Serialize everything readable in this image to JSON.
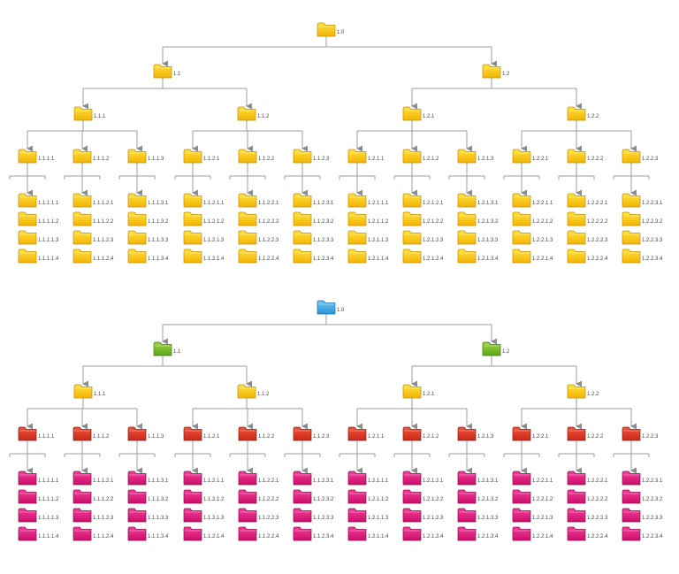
{
  "colors": {
    "line": "#9c9c9c",
    "arrow": "#8c8c8c",
    "text": "#444444",
    "yellow": [
      "#ffe23a",
      "#f3b406",
      "#c68e00"
    ],
    "blue": [
      "#6cc7f4",
      "#2a93d5",
      "#1c6ea4"
    ],
    "green": [
      "#9bd43d",
      "#5ba719",
      "#3f7a0d"
    ],
    "red": [
      "#f0533a",
      "#c8291b",
      "#8f1b10"
    ],
    "magenta": [
      "#f23e98",
      "#cc0f6c",
      "#940a4e"
    ]
  },
  "trees": [
    {
      "name": "tree-top",
      "level_colors": [
        "yellow",
        "yellow",
        "yellow",
        "yellow",
        "yellow"
      ],
      "root": {
        "label": "1.0",
        "children": [
          {
            "label": "1.1",
            "children": [
              {
                "label": "1.1.1",
                "children": [
                  {
                    "label": "1.1.1.1",
                    "children": [
                      {
                        "label": "1.1.1.1.1"
                      },
                      {
                        "label": "1.1.1.1.2"
                      },
                      {
                        "label": "1.1.1.1.3"
                      },
                      {
                        "label": "1.1.1.1.4"
                      }
                    ]
                  },
                  {
                    "label": "1.1.1.2",
                    "children": [
                      {
                        "label": "1.1.1.2.1"
                      },
                      {
                        "label": "1.1.1.2.2"
                      },
                      {
                        "label": "1.1.1.2.3"
                      },
                      {
                        "label": "1.1.1.2.4"
                      }
                    ]
                  },
                  {
                    "label": "1.1.1.3",
                    "children": [
                      {
                        "label": "1.1.1.3.1"
                      },
                      {
                        "label": "1.1.1.3.2"
                      },
                      {
                        "label": "1.1.1.3.3"
                      },
                      {
                        "label": "1.1.1.3.4"
                      }
                    ]
                  }
                ]
              },
              {
                "label": "1.1.2",
                "children": [
                  {
                    "label": "1.1.2.1",
                    "children": [
                      {
                        "label": "1.1.2.1.1"
                      },
                      {
                        "label": "1.1.2.1.2"
                      },
                      {
                        "label": "1.1.2.1.3"
                      },
                      {
                        "label": "1.1.2.1.4"
                      }
                    ]
                  },
                  {
                    "label": "1.1.2.2",
                    "children": [
                      {
                        "label": "1.1.2.2.1"
                      },
                      {
                        "label": "1.1.2.2.2"
                      },
                      {
                        "label": "1.1.2.2.3"
                      },
                      {
                        "label": "1.1.2.2.4"
                      }
                    ]
                  },
                  {
                    "label": "1.1.2.3",
                    "children": [
                      {
                        "label": "1.1.2.3.1"
                      },
                      {
                        "label": "1.1.2.3.2"
                      },
                      {
                        "label": "1.1.2.3.3"
                      },
                      {
                        "label": "1.1.2.3.4"
                      }
                    ]
                  }
                ]
              }
            ]
          },
          {
            "label": "1.2",
            "children": [
              {
                "label": "1.2.1",
                "children": [
                  {
                    "label": "1.2.1.1",
                    "children": [
                      {
                        "label": "1.2.1.1.1"
                      },
                      {
                        "label": "1.2.1.1.2"
                      },
                      {
                        "label": "1.2.1.1.3"
                      },
                      {
                        "label": "1.2.1.1.4"
                      }
                    ]
                  },
                  {
                    "label": "1.2.1.2",
                    "children": [
                      {
                        "label": "1.2.1.2.1"
                      },
                      {
                        "label": "1.2.1.2.2"
                      },
                      {
                        "label": "1.2.1.2.3"
                      },
                      {
                        "label": "1.2.1.2.4"
                      }
                    ]
                  },
                  {
                    "label": "1.2.1.3",
                    "children": [
                      {
                        "label": "1.2.1.3.1"
                      },
                      {
                        "label": "1.2.1.3.2"
                      },
                      {
                        "label": "1.2.1.3.3"
                      },
                      {
                        "label": "1.2.1.3.4"
                      }
                    ]
                  }
                ]
              },
              {
                "label": "1.2.2",
                "children": [
                  {
                    "label": "1.2.2.1",
                    "children": [
                      {
                        "label": "1.2.2.1.1"
                      },
                      {
                        "label": "1.2.2.1.2"
                      },
                      {
                        "label": "1.2.2.1.3"
                      },
                      {
                        "label": "1.2.2.1.4"
                      }
                    ]
                  },
                  {
                    "label": "1.2.2.2",
                    "children": [
                      {
                        "label": "1.2.2.2.1"
                      },
                      {
                        "label": "1.2.2.2.2"
                      },
                      {
                        "label": "1.2.2.2.3"
                      },
                      {
                        "label": "1.2.2.2.4"
                      }
                    ]
                  },
                  {
                    "label": "1.2.2.3",
                    "children": [
                      {
                        "label": "1.2.2.3.1"
                      },
                      {
                        "label": "1.2.2.3.2"
                      },
                      {
                        "label": "1.2.2.3.3"
                      },
                      {
                        "label": "1.2.2.3.4"
                      }
                    ]
                  }
                ]
              }
            ]
          }
        ]
      }
    },
    {
      "name": "tree-bottom",
      "level_colors": [
        "blue",
        "green",
        "yellow",
        "red",
        "magenta"
      ],
      "root": {
        "label": "1.0",
        "children": [
          {
            "label": "1.1",
            "children": [
              {
                "label": "1.1.1",
                "children": [
                  {
                    "label": "1.1.1.1",
                    "children": [
                      {
                        "label": "1.1.1.1.1"
                      },
                      {
                        "label": "1.1.1.1.2"
                      },
                      {
                        "label": "1.1.1.1.3"
                      },
                      {
                        "label": "1.1.1.1.4"
                      }
                    ]
                  },
                  {
                    "label": "1.1.1.2",
                    "children": [
                      {
                        "label": "1.1.1.2.1"
                      },
                      {
                        "label": "1.1.1.2.2"
                      },
                      {
                        "label": "1.1.1.2.3"
                      },
                      {
                        "label": "1.1.1.2.4"
                      }
                    ]
                  },
                  {
                    "label": "1.1.1.3",
                    "children": [
                      {
                        "label": "1.1.1.3.1"
                      },
                      {
                        "label": "1.1.1.3.2"
                      },
                      {
                        "label": "1.1.1.3.3"
                      },
                      {
                        "label": "1.1.1.3.4"
                      }
                    ]
                  }
                ]
              },
              {
                "label": "1.1.2",
                "children": [
                  {
                    "label": "1.1.2.1",
                    "children": [
                      {
                        "label": "1.1.2.1.1"
                      },
                      {
                        "label": "1.1.2.1.2"
                      },
                      {
                        "label": "1.1.2.1.3"
                      },
                      {
                        "label": "1.1.2.1.4"
                      }
                    ]
                  },
                  {
                    "label": "1.1.2.2",
                    "children": [
                      {
                        "label": "1.1.2.2.1"
                      },
                      {
                        "label": "1.1.2.2.2"
                      },
                      {
                        "label": "1.1.2.2.3"
                      },
                      {
                        "label": "1.1.2.2.4"
                      }
                    ]
                  },
                  {
                    "label": "1.1.2.3",
                    "children": [
                      {
                        "label": "1.1.2.3.1"
                      },
                      {
                        "label": "1.1.2.3.2"
                      },
                      {
                        "label": "1.1.2.3.3"
                      },
                      {
                        "label": "1.1.2.3.4"
                      }
                    ]
                  }
                ]
              }
            ]
          },
          {
            "label": "1.2",
            "children": [
              {
                "label": "1.2.1",
                "children": [
                  {
                    "label": "1.2.1.1",
                    "children": [
                      {
                        "label": "1.2.1.1.1"
                      },
                      {
                        "label": "1.2.1.1.2"
                      },
                      {
                        "label": "1.2.1.1.3"
                      },
                      {
                        "label": "1.2.1.1.4"
                      }
                    ]
                  },
                  {
                    "label": "1.2.1.2",
                    "children": [
                      {
                        "label": "1.2.1.2.1"
                      },
                      {
                        "label": "1.2.1.2.2"
                      },
                      {
                        "label": "1.2.1.2.3"
                      },
                      {
                        "label": "1.2.1.2.4"
                      }
                    ]
                  },
                  {
                    "label": "1.2.1.3",
                    "children": [
                      {
                        "label": "1.2.1.3.1"
                      },
                      {
                        "label": "1.2.1.3.2"
                      },
                      {
                        "label": "1.2.1.3.3"
                      },
                      {
                        "label": "1.2.1.3.4"
                      }
                    ]
                  }
                ]
              },
              {
                "label": "1.2.2",
                "children": [
                  {
                    "label": "1.2.2.1",
                    "children": [
                      {
                        "label": "1.2.2.1.1"
                      },
                      {
                        "label": "1.2.2.1.2"
                      },
                      {
                        "label": "1.2.2.1.3"
                      },
                      {
                        "label": "1.2.2.1.4"
                      }
                    ]
                  },
                  {
                    "label": "1.2.2.2",
                    "children": [
                      {
                        "label": "1.2.2.2.1"
                      },
                      {
                        "label": "1.2.2.2.2"
                      },
                      {
                        "label": "1.2.2.2.3"
                      },
                      {
                        "label": "1.2.2.2.4"
                      }
                    ]
                  },
                  {
                    "label": "1.2.2.3",
                    "children": [
                      {
                        "label": "1.2.2.3.1"
                      },
                      {
                        "label": "1.2.2.3.2"
                      },
                      {
                        "label": "1.2.2.3.3"
                      },
                      {
                        "label": "1.2.2.3.4"
                      }
                    ]
                  }
                ]
              }
            ]
          }
        ]
      }
    }
  ]
}
